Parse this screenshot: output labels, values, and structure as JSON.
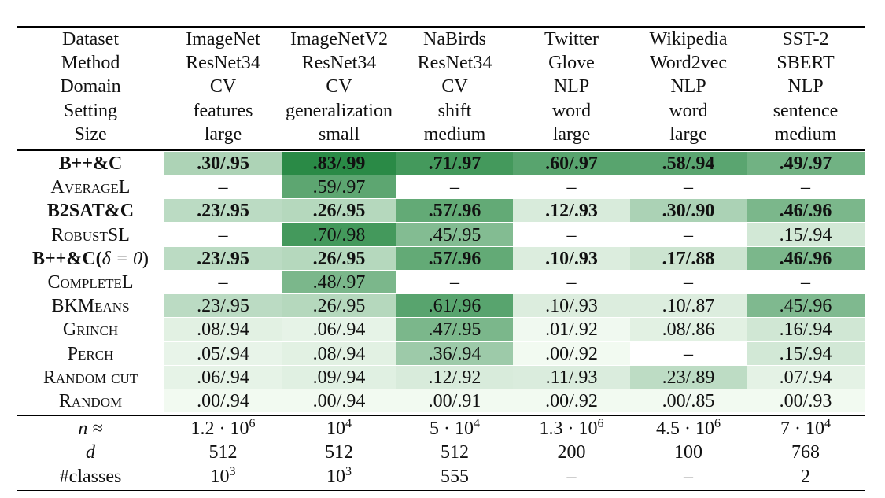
{
  "header": {
    "labels": [
      "Dataset",
      "Method",
      "Domain",
      "Setting",
      "Size"
    ],
    "columns": [
      [
        "ImageNet",
        "ResNet34",
        "CV",
        "features",
        "large"
      ],
      [
        "ImageNetV2",
        "ResNet34",
        "CV",
        "generalization",
        "small"
      ],
      [
        "NaBirds",
        "ResNet34",
        "CV",
        "shift",
        "medium"
      ],
      [
        "Twitter",
        "Glove",
        "NLP",
        "word",
        "large"
      ],
      [
        "Wikipedia",
        "Word2vec",
        "NLP",
        "word",
        "large"
      ],
      [
        "SST-2",
        "SBERT",
        "NLP",
        "sentence",
        "medium"
      ]
    ]
  },
  "rows": [
    {
      "name": "B++&C",
      "style": "bold",
      "cells": [
        {
          "text": ".30/.95",
          "shade": 0.35
        },
        {
          "text": ".83/.99",
          "shade": 1.0
        },
        {
          "text": ".71/.97",
          "shade": 0.87
        },
        {
          "text": ".60/.97",
          "shade": 0.77
        },
        {
          "text": ".58/.94",
          "shade": 0.76
        },
        {
          "text": ".49/.97",
          "shade": 0.65
        }
      ]
    },
    {
      "name": "AverageL",
      "style": "sc",
      "cells": [
        {
          "text": "–",
          "shade": 0
        },
        {
          "text": ".59/.97",
          "shade": 0.75
        },
        {
          "text": "–",
          "shade": 0
        },
        {
          "text": "–",
          "shade": 0
        },
        {
          "text": "–",
          "shade": 0
        },
        {
          "text": "–",
          "shade": 0
        }
      ]
    },
    {
      "name": "B2SAT&C",
      "style": "bold",
      "cells": [
        {
          "text": ".23/.95",
          "shade": 0.28
        },
        {
          "text": ".26/.95",
          "shade": 0.31
        },
        {
          "text": ".57/.96",
          "shade": 0.72
        },
        {
          "text": ".12/.93",
          "shade": 0.14
        },
        {
          "text": ".30/.90",
          "shade": 0.36
        },
        {
          "text": ".46/.96",
          "shade": 0.6
        }
      ]
    },
    {
      "name": "RobustSL",
      "style": "sc",
      "cells": [
        {
          "text": "–",
          "shade": 0
        },
        {
          "text": ".70/.98",
          "shade": 0.87
        },
        {
          "text": ".45/.95",
          "shade": 0.56
        },
        {
          "text": "–",
          "shade": 0
        },
        {
          "text": "–",
          "shade": 0
        },
        {
          "text": ".15/.94",
          "shade": 0.17
        }
      ]
    },
    {
      "name": "B++&C(",
      "math": "δ = 0",
      "tail": ")",
      "style": "bold",
      "cells": [
        {
          "text": ".23/.95",
          "shade": 0.28
        },
        {
          "text": ".26/.95",
          "shade": 0.31
        },
        {
          "text": ".57/.96",
          "shade": 0.72
        },
        {
          "text": ".10/.93",
          "shade": 0.12
        },
        {
          "text": ".17/.88",
          "shade": 0.2
        },
        {
          "text": ".46/.96",
          "shade": 0.6
        }
      ]
    },
    {
      "name": "CompleteL",
      "style": "sc",
      "cells": [
        {
          "text": "–",
          "shade": 0
        },
        {
          "text": ".48/.97",
          "shade": 0.6
        },
        {
          "text": "–",
          "shade": 0
        },
        {
          "text": "–",
          "shade": 0
        },
        {
          "text": "–",
          "shade": 0
        },
        {
          "text": "–",
          "shade": 0
        }
      ]
    },
    {
      "name": "BKMeans",
      "style": "sc",
      "cells": [
        {
          "text": ".23/.95",
          "shade": 0.28
        },
        {
          "text": ".26/.95",
          "shade": 0.31
        },
        {
          "text": ".61/.96",
          "shade": 0.77
        },
        {
          "text": ".10/.93",
          "shade": 0.12
        },
        {
          "text": ".10/.87",
          "shade": 0.12
        },
        {
          "text": ".45/.96",
          "shade": 0.58
        }
      ]
    },
    {
      "name": "Grinch",
      "style": "sc",
      "cells": [
        {
          "text": ".08/.94",
          "shade": 0.09
        },
        {
          "text": ".06/.94",
          "shade": 0.07
        },
        {
          "text": ".47/.95",
          "shade": 0.6
        },
        {
          "text": ".01/.92",
          "shade": 0.02
        },
        {
          "text": ".08/.86",
          "shade": 0.09
        },
        {
          "text": ".16/.94",
          "shade": 0.18
        }
      ]
    },
    {
      "name": "Perch",
      "style": "sc",
      "cells": [
        {
          "text": ".05/.94",
          "shade": 0.06
        },
        {
          "text": ".08/.94",
          "shade": 0.09
        },
        {
          "text": ".36/.94",
          "shade": 0.43
        },
        {
          "text": ".00/.92",
          "shade": 0.01
        },
        {
          "text": "–",
          "shade": 0
        },
        {
          "text": ".15/.94",
          "shade": 0.17
        }
      ]
    },
    {
      "name": "Random cut",
      "style": "sc",
      "cells": [
        {
          "text": ".06/.94",
          "shade": 0.07
        },
        {
          "text": ".09/.94",
          "shade": 0.1
        },
        {
          "text": ".12/.92",
          "shade": 0.14
        },
        {
          "text": ".11/.93",
          "shade": 0.13
        },
        {
          "text": ".23/.89",
          "shade": 0.27
        },
        {
          "text": ".07/.94",
          "shade": 0.08
        }
      ]
    },
    {
      "name": "Random",
      "style": "sc",
      "cells": [
        {
          "text": ".00/.94",
          "shade": 0.01
        },
        {
          "text": ".00/.94",
          "shade": 0.01
        },
        {
          "text": ".00/.91",
          "shade": 0.01
        },
        {
          "text": ".00/.92",
          "shade": 0.01
        },
        {
          "text": ".00/.85",
          "shade": 0.01
        },
        {
          "text": ".00/.93",
          "shade": 0.01
        }
      ]
    }
  ],
  "footer": [
    {
      "label": "n ≈",
      "italic": true,
      "cells": [
        {
          "base": "1.2 · 10",
          "sup": "6"
        },
        {
          "base": "10",
          "sup": "4"
        },
        {
          "base": "5 · 10",
          "sup": "4"
        },
        {
          "base": "1.3 · 10",
          "sup": "6"
        },
        {
          "base": "4.5 · 10",
          "sup": "6"
        },
        {
          "base": "7 · 10",
          "sup": "4"
        }
      ]
    },
    {
      "label": "d",
      "italic": true,
      "cells": [
        {
          "base": "512"
        },
        {
          "base": "512"
        },
        {
          "base": "512"
        },
        {
          "base": "200"
        },
        {
          "base": "100"
        },
        {
          "base": "768"
        }
      ]
    },
    {
      "label": "#classes",
      "italic": false,
      "cells": [
        {
          "base": "10",
          "sup": "3"
        },
        {
          "base": "10",
          "sup": "3"
        },
        {
          "base": "555"
        },
        {
          "base": "–"
        },
        {
          "base": "–"
        },
        {
          "base": "2"
        }
      ]
    }
  ],
  "colors": {
    "shade_light": "#f4fbf3",
    "shade_dark": "#2a8a46"
  }
}
